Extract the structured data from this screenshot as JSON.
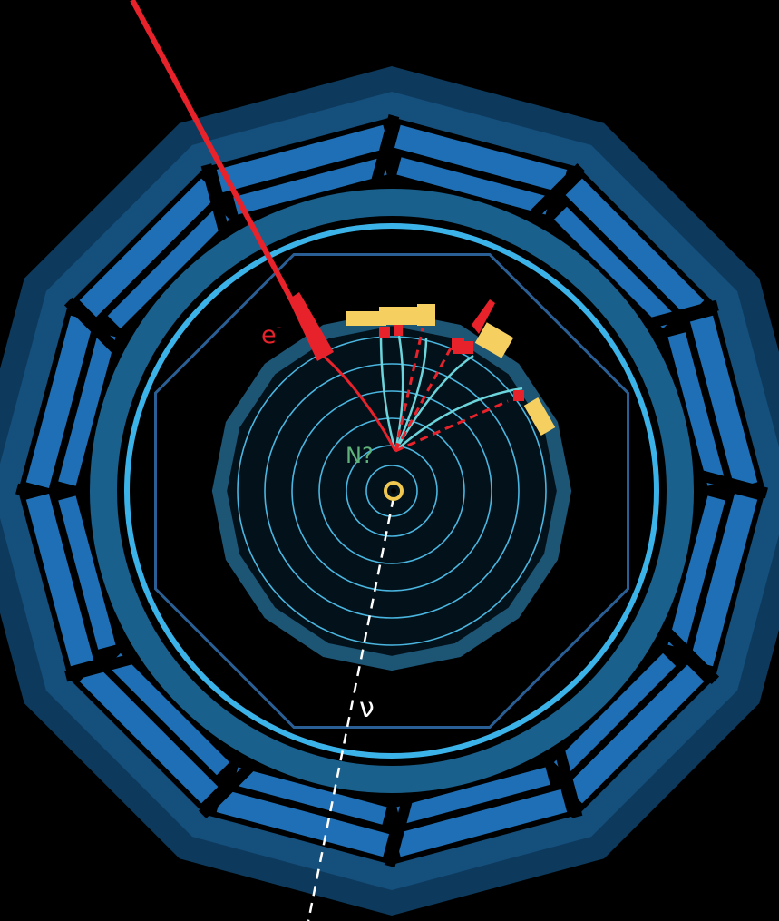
{
  "labels": {
    "electron": "e",
    "electron_charge": "-",
    "neutrino": "ν",
    "heavy_neutral_lepton": "N?"
  },
  "colors": {
    "background": "#000000",
    "detector_outer": "#154f7c",
    "detector_outer_dark": "#0d3a5c",
    "module_blue": "#1f6fb6",
    "calorimeter_ring": "#19608c",
    "ring_cyan": "#3cb3e8",
    "inner_octagon": "#2a5f95",
    "tracker_ring": "#1d5575",
    "tracker_inner": "#4ab6e0",
    "electron_red": "#e8222b",
    "track_cyan": "#6cd4db",
    "energy_yellow": "#f5cf60",
    "vertex_yellow": "#f0c850",
    "neutrino_white": "#ffffff",
    "label_green": "#5fb37a"
  }
}
